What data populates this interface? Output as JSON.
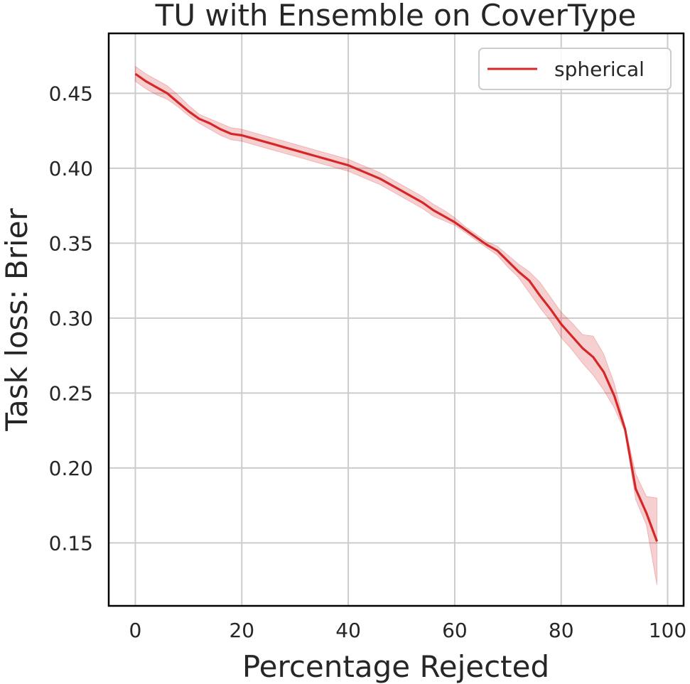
{
  "chart_data": {
    "type": "line",
    "title": "TU with Ensemble on CoverType",
    "xlabel": "Percentage Rejected",
    "ylabel": "Task loss: Brier",
    "xlim": [
      -5,
      103
    ],
    "ylim": [
      0.108,
      0.49
    ],
    "xticks": [
      0,
      20,
      40,
      60,
      80,
      100
    ],
    "xtick_labels": [
      "0",
      "20",
      "40",
      "60",
      "80",
      "100"
    ],
    "yticks": [
      0.15,
      0.2,
      0.25,
      0.3,
      0.35,
      0.4,
      0.45
    ],
    "ytick_labels": [
      "0.15",
      "0.20",
      "0.25",
      "0.30",
      "0.35",
      "0.40",
      "0.45"
    ],
    "grid": true,
    "legend_position": "top-right",
    "series": [
      {
        "name": "spherical",
        "color": "#d62728",
        "band_color": "#d62728",
        "x": [
          0,
          2,
          4,
          6,
          8,
          10,
          12,
          14,
          16,
          18,
          20,
          22,
          24,
          26,
          28,
          30,
          32,
          34,
          36,
          38,
          40,
          42,
          44,
          46,
          48,
          50,
          52,
          54,
          56,
          58,
          60,
          62,
          64,
          66,
          68,
          70,
          72,
          74,
          76,
          78,
          80,
          82,
          84,
          86,
          88,
          90,
          92,
          94,
          96,
          98
        ],
        "values": [
          0.463,
          0.458,
          0.454,
          0.45,
          0.444,
          0.438,
          0.433,
          0.43,
          0.426,
          0.423,
          0.422,
          0.42,
          0.418,
          0.416,
          0.414,
          0.412,
          0.41,
          0.408,
          0.406,
          0.404,
          0.402,
          0.399,
          0.396,
          0.393,
          0.389,
          0.385,
          0.381,
          0.377,
          0.372,
          0.368,
          0.364,
          0.359,
          0.354,
          0.349,
          0.345,
          0.338,
          0.331,
          0.325,
          0.315,
          0.306,
          0.296,
          0.288,
          0.28,
          0.274,
          0.264,
          0.248,
          0.226,
          0.186,
          0.17,
          0.151
        ],
        "lower": [
          0.458,
          0.453,
          0.449,
          0.446,
          0.441,
          0.435,
          0.43,
          0.426,
          0.422,
          0.419,
          0.418,
          0.416,
          0.414,
          0.412,
          0.41,
          0.408,
          0.406,
          0.404,
          0.402,
          0.4,
          0.398,
          0.395,
          0.392,
          0.389,
          0.385,
          0.381,
          0.377,
          0.373,
          0.368,
          0.365,
          0.362,
          0.357,
          0.352,
          0.347,
          0.342,
          0.334,
          0.327,
          0.317,
          0.307,
          0.298,
          0.287,
          0.279,
          0.27,
          0.262,
          0.252,
          0.24,
          0.224,
          0.179,
          0.162,
          0.122
        ],
        "upper": [
          0.468,
          0.463,
          0.459,
          0.455,
          0.449,
          0.442,
          0.436,
          0.433,
          0.43,
          0.427,
          0.426,
          0.424,
          0.422,
          0.42,
          0.418,
          0.416,
          0.414,
          0.412,
          0.41,
          0.408,
          0.406,
          0.403,
          0.4,
          0.397,
          0.393,
          0.389,
          0.385,
          0.381,
          0.376,
          0.372,
          0.367,
          0.361,
          0.356,
          0.351,
          0.348,
          0.342,
          0.336,
          0.331,
          0.324,
          0.314,
          0.304,
          0.297,
          0.289,
          0.288,
          0.276,
          0.256,
          0.228,
          0.196,
          0.181,
          0.18
        ]
      }
    ]
  }
}
